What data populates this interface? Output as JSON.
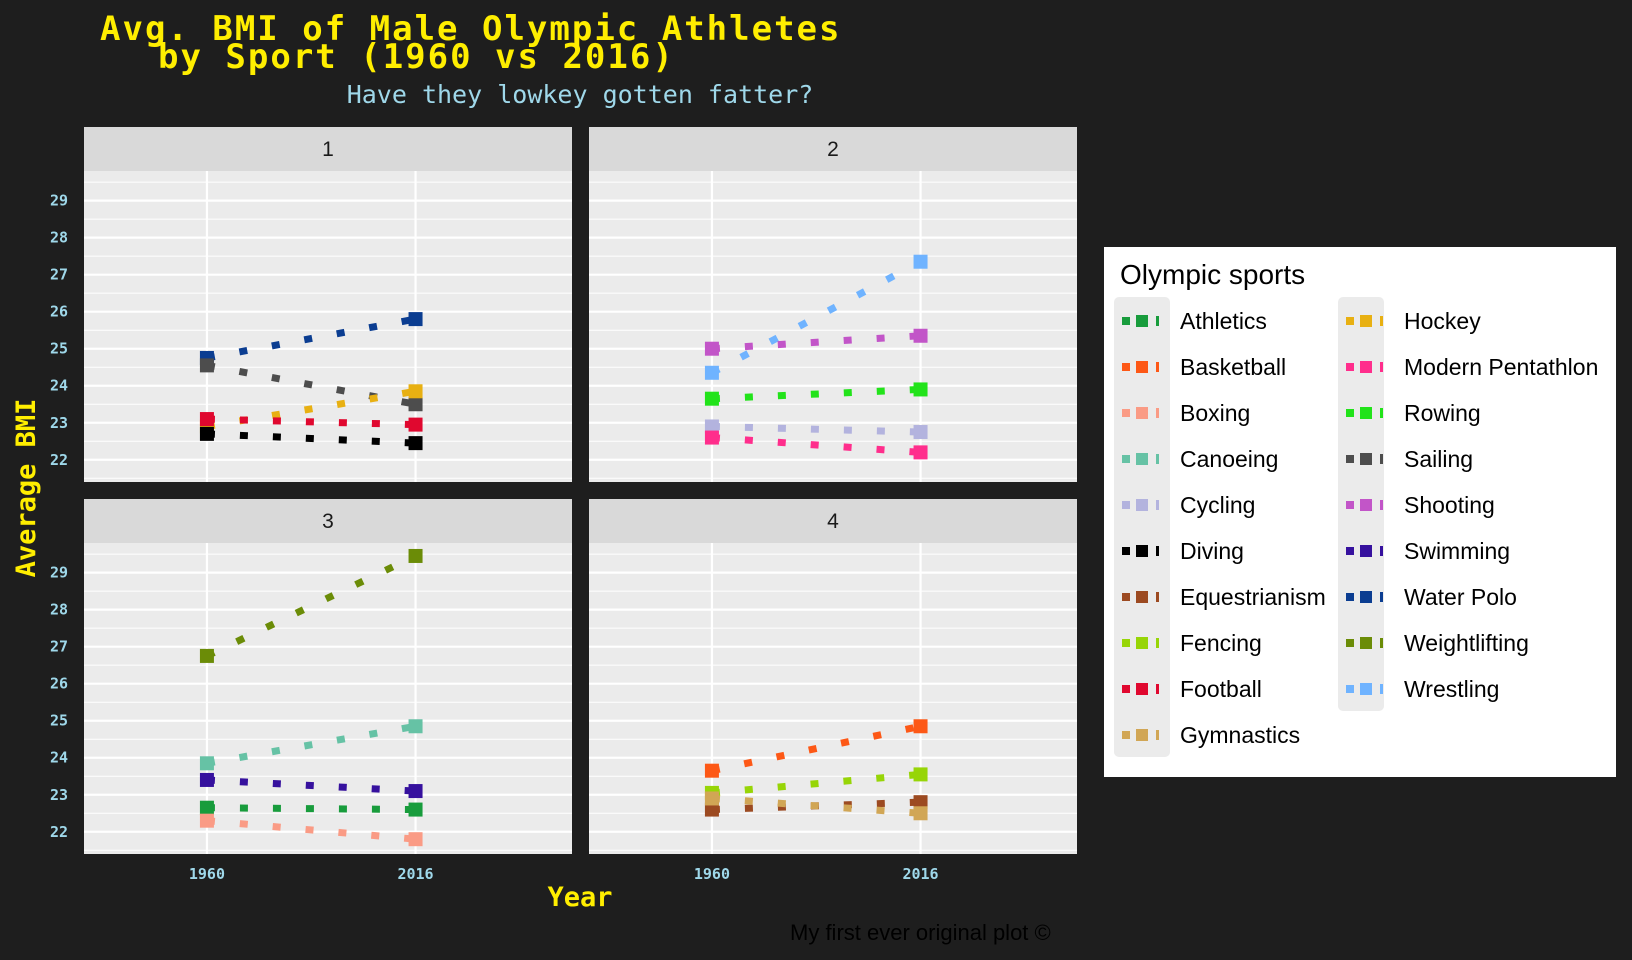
{
  "chart_data": {
    "type": "line",
    "title_line1": "Avg. BMI of Male Olympic Athletes",
    "title_line2": "by Sport (1960 vs 2016)",
    "subtitle": "Have they lowkey gotten fatter?",
    "caption": "My first ever original plot ©",
    "xlabel": "Year",
    "ylabel": "Average BMI",
    "x": [
      1960,
      2016
    ],
    "x_ticks": [
      1960,
      2016
    ],
    "y_ticks": [
      22,
      23,
      24,
      25,
      26,
      27,
      28,
      29
    ],
    "ylim": [
      21.4,
      29.8
    ],
    "xlim": [
      1927,
      2058
    ],
    "line_style": "dotted",
    "legend_title": "Olympic sports",
    "legend_position": "right",
    "facets": [
      {
        "label": "1",
        "series": [
          {
            "name": "Water Polo",
            "color": "#0b3d91",
            "values": [
              24.75,
              25.8
            ]
          },
          {
            "name": "Sailing",
            "color": "#4d4d4d",
            "values": [
              24.55,
              23.5
            ]
          },
          {
            "name": "Hockey",
            "color": "#e8b012",
            "values": [
              22.9,
              23.85
            ]
          },
          {
            "name": "Football",
            "color": "#e0082f",
            "values": [
              23.1,
              22.95
            ]
          },
          {
            "name": "Diving",
            "color": "#000000",
            "values": [
              22.7,
              22.45
            ]
          }
        ]
      },
      {
        "label": "2",
        "series": [
          {
            "name": "Wrestling",
            "color": "#6fb3ff",
            "values": [
              24.35,
              27.35
            ]
          },
          {
            "name": "Shooting",
            "color": "#c255c8",
            "values": [
              25.0,
              25.35
            ]
          },
          {
            "name": "Rowing",
            "color": "#22e31a",
            "values": [
              23.65,
              23.9
            ]
          },
          {
            "name": "Cycling",
            "color": "#b3b3de",
            "values": [
              22.9,
              22.75
            ]
          },
          {
            "name": "Modern Pentathlon",
            "color": "#ff2e8c",
            "values": [
              22.6,
              22.2
            ]
          }
        ]
      },
      {
        "label": "3",
        "series": [
          {
            "name": "Weightlifting",
            "color": "#6b8c07",
            "values": [
              26.75,
              29.45
            ]
          },
          {
            "name": "Canoeing",
            "color": "#66c2a5",
            "values": [
              23.85,
              24.85
            ]
          },
          {
            "name": "Swimming",
            "color": "#36119e",
            "values": [
              23.4,
              23.1
            ]
          },
          {
            "name": "Athletics",
            "color": "#189c3c",
            "values": [
              22.65,
              22.6
            ]
          },
          {
            "name": "Boxing",
            "color": "#fa9b85",
            "values": [
              22.3,
              21.8
            ]
          }
        ]
      },
      {
        "label": "4",
        "series": [
          {
            "name": "Basketball",
            "color": "#fd5816",
            "values": [
              23.65,
              24.85
            ]
          },
          {
            "name": "Fencing",
            "color": "#97d507",
            "values": [
              23.05,
              23.55
            ]
          },
          {
            "name": "Equestrianism",
            "color": "#9c4a21",
            "values": [
              22.6,
              22.8
            ]
          },
          {
            "name": "Gymnastics",
            "color": "#d1a655",
            "values": [
              22.9,
              22.5
            ]
          }
        ]
      }
    ],
    "legend_items": [
      {
        "name": "Athletics",
        "color": "#189c3c"
      },
      {
        "name": "Basketball",
        "color": "#fd5816"
      },
      {
        "name": "Boxing",
        "color": "#fa9b85"
      },
      {
        "name": "Canoeing",
        "color": "#66c2a5"
      },
      {
        "name": "Cycling",
        "color": "#b3b3de"
      },
      {
        "name": "Diving",
        "color": "#000000"
      },
      {
        "name": "Equestrianism",
        "color": "#9c4a21"
      },
      {
        "name": "Fencing",
        "color": "#97d507"
      },
      {
        "name": "Football",
        "color": "#e0082f"
      },
      {
        "name": "Gymnastics",
        "color": "#d1a655"
      },
      {
        "name": "Hockey",
        "color": "#e8b012"
      },
      {
        "name": "Modern Pentathlon",
        "color": "#ff2e8c"
      },
      {
        "name": "Rowing",
        "color": "#22e31a"
      },
      {
        "name": "Sailing",
        "color": "#4d4d4d"
      },
      {
        "name": "Shooting",
        "color": "#c255c8"
      },
      {
        "name": "Swimming",
        "color": "#36119e"
      },
      {
        "name": "Water Polo",
        "color": "#0b3d91"
      },
      {
        "name": "Weightlifting",
        "color": "#6b8c07"
      },
      {
        "name": "Wrestling",
        "color": "#6fb3ff"
      }
    ]
  }
}
